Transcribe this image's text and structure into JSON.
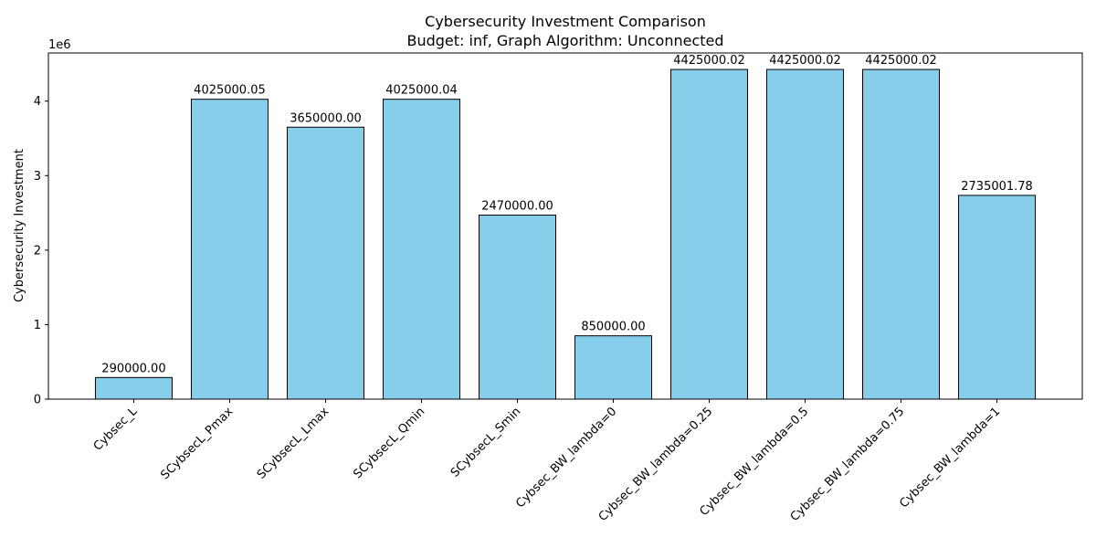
{
  "chart_data": {
    "type": "bar",
    "title": "Cybersecurity Investment Comparison",
    "subtitle": "Budget: inf, Graph Algorithm: Unconnected",
    "xlabel": "",
    "ylabel": "Cybersecurity Investment",
    "y_offset_label": "1e6",
    "categories": [
      "Cybsec_L",
      "SCybsecL_Pmax",
      "SCybsecL_Lmax",
      "SCybsecL_Qmin",
      "SCybsecL_Smin",
      "Cybsec_BW_lambda=0",
      "Cybsec_BW_lambda=0.25",
      "Cybsec_BW_lambda=0.5",
      "Cybsec_BW_lambda=0.75",
      "Cybsec_BW_lambda=1"
    ],
    "values": [
      290000.0,
      4025000.05,
      3650000.0,
      4025000.04,
      2470000.0,
      850000.0,
      4425000.02,
      4425000.02,
      4425000.02,
      2735001.78
    ],
    "data_labels": [
      "290000.00",
      "4025000.05",
      "3650000.00",
      "4025000.04",
      "2470000.00",
      "850000.00",
      "4425000.02",
      "4425000.02",
      "4425000.02",
      "2735001.78"
    ],
    "y_ticks": [
      0,
      1,
      2,
      3,
      4
    ],
    "y_tick_scale": 1000000,
    "ylim": [
      0,
      4646250
    ],
    "grid": false,
    "bar_color": "#87ceeb",
    "bar_edge_color": "#000000"
  }
}
